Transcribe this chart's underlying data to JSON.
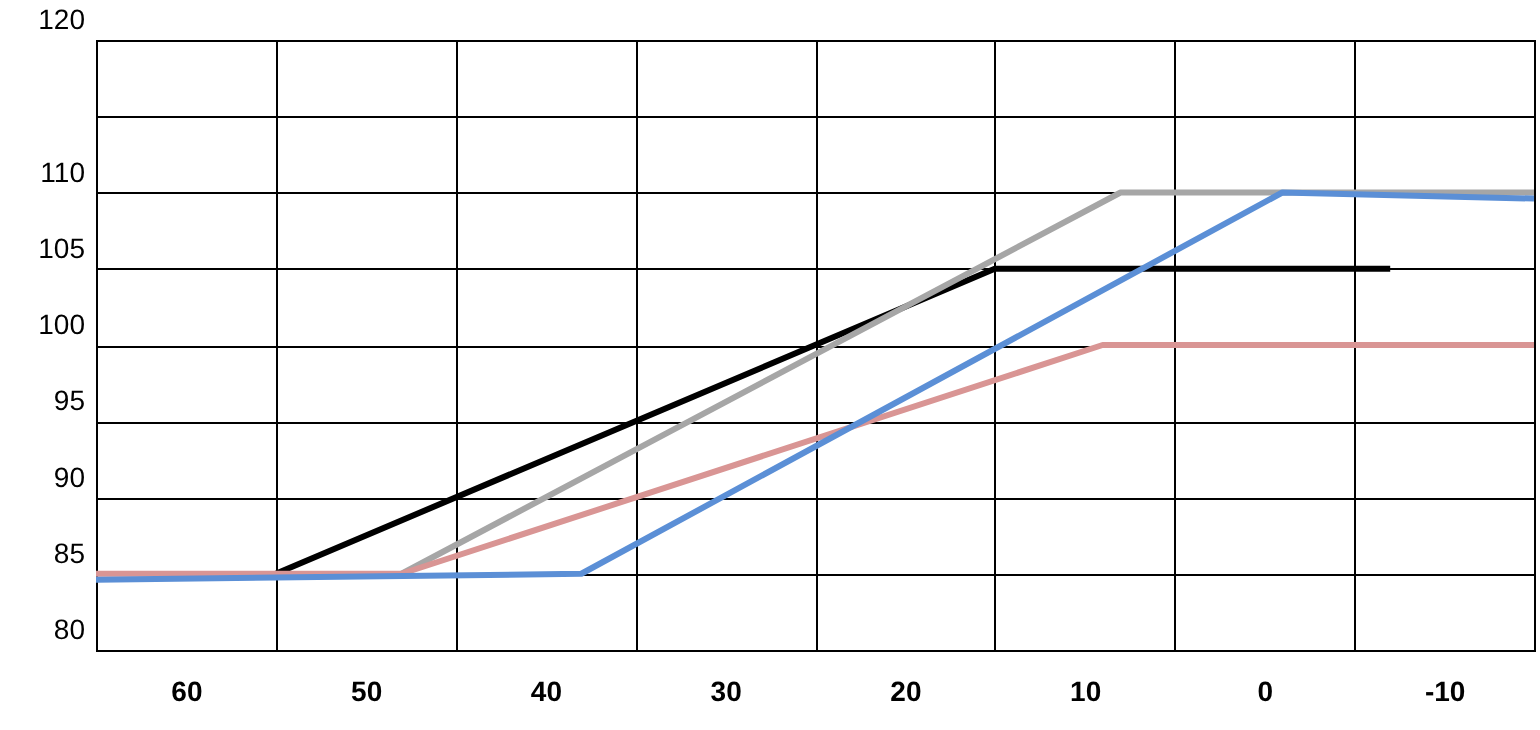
{
  "chart_data": {
    "type": "line",
    "grid": true,
    "xlim": [
      65,
      -15
    ],
    "xticks": [
      {
        "value": 65,
        "label": null
      },
      60,
      {
        "value": 55,
        "label": null
      },
      50,
      {
        "value": 45,
        "label": null
      },
      40,
      {
        "value": 35,
        "label": null
      },
      30,
      {
        "value": 25,
        "label": null
      },
      20,
      {
        "value": 15,
        "label": null
      },
      10,
      {
        "value": 5,
        "label": null
      },
      0,
      {
        "value": -5,
        "label": null
      },
      -10,
      {
        "value": -15,
        "label": null
      }
    ],
    "ylim": [
      80,
      120
    ],
    "yticks": [
      80,
      85,
      90,
      95,
      100,
      105,
      110,
      {
        "value": 115,
        "label": null
      },
      120
    ],
    "series": [
      {
        "color": "#000000",
        "x": [
          55,
          15,
          -7
        ],
        "values": [
          85,
          105,
          105
        ]
      },
      {
        "color": "#a6a6a6",
        "x": [
          48,
          8,
          -15
        ],
        "values": [
          85,
          110,
          110
        ]
      },
      {
        "color": "#d99594",
        "x": [
          65,
          48,
          9,
          -15
        ],
        "values": [
          85,
          85,
          100,
          100
        ]
      },
      {
        "color": "#5b8fd6",
        "x": [
          65,
          38,
          -1,
          -15
        ],
        "values": [
          84.6,
          85,
          110,
          109.6
        ]
      }
    ]
  }
}
